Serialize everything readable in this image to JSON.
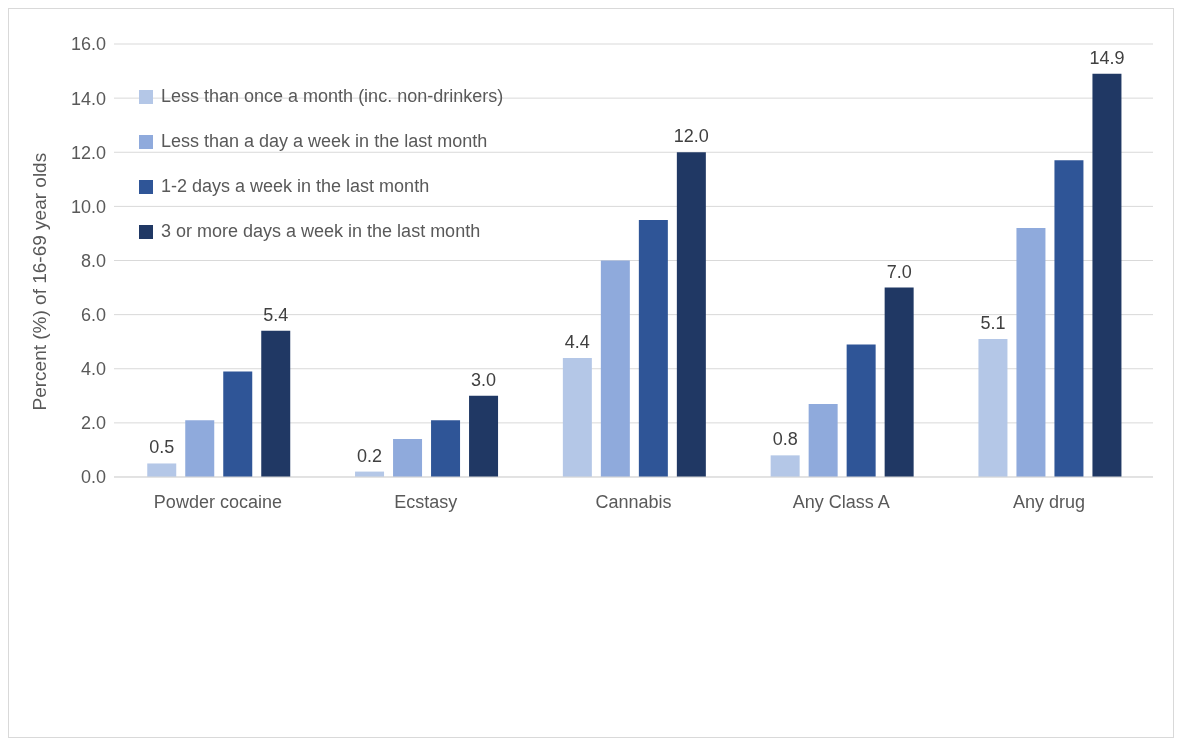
{
  "chart_data": {
    "type": "bar",
    "ylabel": "Percent (%) of 16-69 year olds",
    "categories": [
      "Powder cocaine",
      "Ecstasy",
      "Cannabis",
      "Any Class A",
      "Any drug"
    ],
    "series": [
      {
        "name": "Less than once a month (inc. non-drinkers)",
        "color": "#b4c7e7",
        "values": [
          0.5,
          0.2,
          4.4,
          0.8,
          5.1
        ],
        "value_labels": [
          "0.5",
          "0.2",
          "4.4",
          "0.8",
          "5.1"
        ]
      },
      {
        "name": "Less than a day a week in the last month",
        "color": "#8faadc",
        "values": [
          2.1,
          1.4,
          8.0,
          2.7,
          9.2
        ]
      },
      {
        "name": "1-2 days a week in the last month",
        "color": "#2f5597",
        "values": [
          3.9,
          2.1,
          9.5,
          4.9,
          11.7
        ]
      },
      {
        "name": "3 or more days a week in the last month",
        "color": "#203864",
        "values": [
          5.4,
          3.0,
          12.0,
          7.0,
          14.9
        ],
        "value_labels": [
          "5.4",
          "3.0",
          "12.0",
          "7.0",
          "14.9"
        ]
      }
    ],
    "ylim": [
      0,
      16
    ],
    "yticks": [
      {
        "value": 0,
        "label": "0.0"
      },
      {
        "value": 2,
        "label": "2.0"
      },
      {
        "value": 4,
        "label": "4.0"
      },
      {
        "value": 6,
        "label": "6.0"
      },
      {
        "value": 8,
        "label": "8.0"
      },
      {
        "value": 10,
        "label": "10.0"
      },
      {
        "value": 12,
        "label": "12.0"
      },
      {
        "value": 14,
        "label": "14.0"
      },
      {
        "value": 16,
        "label": "16.0"
      }
    ],
    "grid": "y",
    "legend": "top left"
  }
}
